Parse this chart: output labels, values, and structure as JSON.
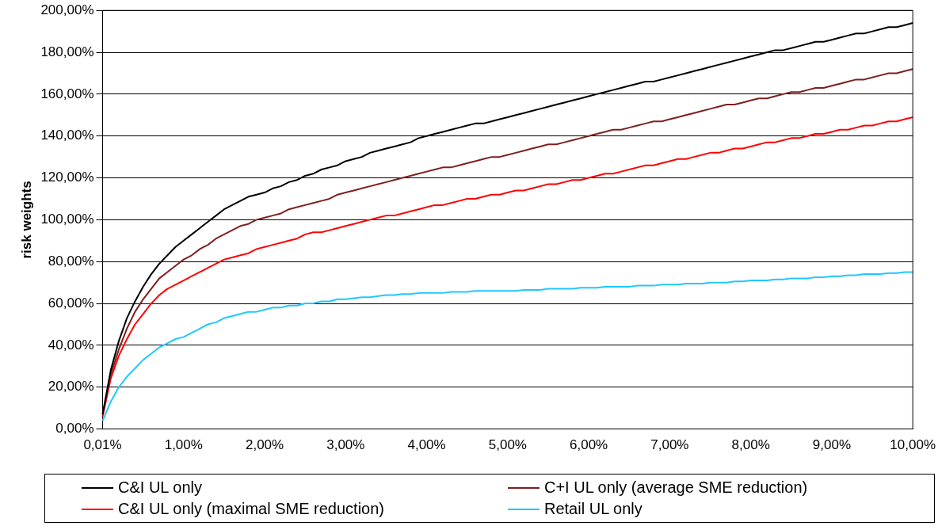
{
  "chart_data": {
    "type": "line",
    "ylabel": "risk weights",
    "categories": [
      "0,01%",
      null,
      null,
      null,
      null,
      null,
      null,
      null,
      null,
      null,
      "1,00%",
      null,
      null,
      null,
      null,
      null,
      null,
      null,
      null,
      null,
      "2,00%",
      null,
      null,
      null,
      null,
      null,
      null,
      null,
      null,
      null,
      "3,00%",
      null,
      null,
      null,
      null,
      null,
      null,
      null,
      null,
      null,
      "4,00%",
      null,
      null,
      null,
      null,
      null,
      null,
      null,
      null,
      null,
      "5,00%",
      null,
      null,
      null,
      null,
      null,
      null,
      null,
      null,
      null,
      "6,00%",
      null,
      null,
      null,
      null,
      null,
      null,
      null,
      null,
      null,
      "7,00%",
      null,
      null,
      null,
      null,
      null,
      null,
      null,
      null,
      null,
      "8,00%",
      null,
      null,
      null,
      null,
      null,
      null,
      null,
      null,
      null,
      "9,00%",
      null,
      null,
      null,
      null,
      null,
      null,
      null,
      null,
      null,
      "10,00%"
    ],
    "series": [
      {
        "name": "C&I UL only",
        "color": "#000000",
        "values": [
          7,
          28,
          42,
          53,
          61,
          68,
          74,
          79,
          83,
          87,
          90,
          93,
          96,
          99,
          102,
          105,
          107,
          109,
          111,
          112,
          113,
          115,
          116,
          118,
          119,
          121,
          122,
          124,
          125,
          126,
          128,
          129,
          130,
          132,
          133,
          134,
          135,
          136,
          137,
          139,
          140,
          141,
          142,
          143,
          144,
          145,
          146,
          146,
          147,
          148,
          149,
          150,
          151,
          152,
          153,
          154,
          155,
          156,
          157,
          158,
          159,
          160,
          161,
          162,
          163,
          164,
          165,
          166,
          166,
          167,
          168,
          169,
          170,
          171,
          172,
          173,
          174,
          175,
          176,
          177,
          178,
          179,
          180,
          181,
          181,
          182,
          183,
          184,
          185,
          185,
          186,
          187,
          188,
          189,
          189,
          190,
          191,
          192,
          192,
          193,
          194
        ]
      },
      {
        "name": "C+I UL only (average SME reduction)",
        "color": "#7f1f1f",
        "values": [
          7,
          26,
          38,
          48,
          56,
          62,
          67,
          72,
          75,
          78,
          81,
          83,
          86,
          88,
          91,
          93,
          95,
          97,
          98,
          100,
          101,
          102,
          103,
          105,
          106,
          107,
          108,
          109,
          110,
          112,
          113,
          114,
          115,
          116,
          117,
          118,
          119,
          120,
          121,
          122,
          123,
          124,
          125,
          125,
          126,
          127,
          128,
          129,
          130,
          130,
          131,
          132,
          133,
          134,
          135,
          136,
          136,
          137,
          138,
          139,
          140,
          141,
          142,
          143,
          143,
          144,
          145,
          146,
          147,
          147,
          148,
          149,
          150,
          151,
          152,
          153,
          154,
          155,
          155,
          156,
          157,
          158,
          158,
          159,
          160,
          161,
          161,
          162,
          163,
          163,
          164,
          165,
          166,
          167,
          167,
          168,
          169,
          170,
          170,
          171,
          172
        ]
      },
      {
        "name": "C&I UL only (maximal SME reduction)",
        "color": "#ff0000",
        "values": [
          6,
          24,
          35,
          43,
          50,
          55,
          60,
          64,
          67,
          69,
          71,
          73,
          75,
          77,
          79,
          81,
          82,
          83,
          84,
          86,
          87,
          88,
          89,
          90,
          91,
          93,
          94,
          94,
          95,
          96,
          97,
          98,
          99,
          100,
          101,
          102,
          102,
          103,
          104,
          105,
          106,
          107,
          107,
          108,
          109,
          110,
          110,
          111,
          112,
          112,
          113,
          114,
          114,
          115,
          116,
          117,
          117,
          118,
          119,
          119,
          120,
          121,
          122,
          122,
          123,
          124,
          125,
          126,
          126,
          127,
          128,
          129,
          129,
          130,
          131,
          132,
          132,
          133,
          134,
          134,
          135,
          136,
          137,
          137,
          138,
          139,
          139,
          140,
          141,
          141,
          142,
          143,
          143,
          144,
          145,
          145,
          146,
          147,
          147,
          148,
          149
        ]
      },
      {
        "name": "Retail UL only",
        "color": "#1ec8ff",
        "values": [
          4,
          13,
          20,
          25,
          29,
          33,
          36,
          39,
          41,
          43,
          44,
          46,
          48,
          50,
          51,
          53,
          54,
          55,
          56,
          56,
          57,
          58,
          58,
          59,
          59,
          60,
          60,
          61,
          61,
          62,
          62,
          62.5,
          63,
          63,
          63.5,
          64,
          64,
          64.5,
          64.5,
          65,
          65,
          65,
          65,
          65.5,
          65.5,
          65.5,
          66,
          66,
          66,
          66,
          66,
          66,
          66.5,
          66.5,
          66.5,
          67,
          67,
          67,
          67,
          67.5,
          67.5,
          67.5,
          68,
          68,
          68,
          68,
          68.5,
          68.5,
          68.5,
          69,
          69,
          69,
          69.5,
          69.5,
          69.5,
          70,
          70,
          70,
          70.5,
          70.5,
          71,
          71,
          71,
          71.5,
          71.5,
          72,
          72,
          72,
          72.5,
          72.5,
          73,
          73,
          73.5,
          73.5,
          74,
          74,
          74,
          74.5,
          74.5,
          75,
          75
        ]
      }
    ],
    "ylim": [
      0,
      200
    ],
    "yticks": [
      {
        "value": 0,
        "label": "0,00%"
      },
      {
        "value": 20,
        "label": "20,00%"
      },
      {
        "value": 40,
        "label": "40,00%"
      },
      {
        "value": 60,
        "label": "60,00%"
      },
      {
        "value": 80,
        "label": "80,00%"
      },
      {
        "value": 100,
        "label": "100,00%"
      },
      {
        "value": 120,
        "label": "120,00%"
      },
      {
        "value": 140,
        "label": "140,00%"
      },
      {
        "value": 160,
        "label": "160,00%"
      },
      {
        "value": 180,
        "label": "180,00%"
      },
      {
        "value": 200,
        "label": "200,00%"
      }
    ],
    "grid": "y",
    "legend": "bottom",
    "marker": "none",
    "line_style": "solid"
  }
}
